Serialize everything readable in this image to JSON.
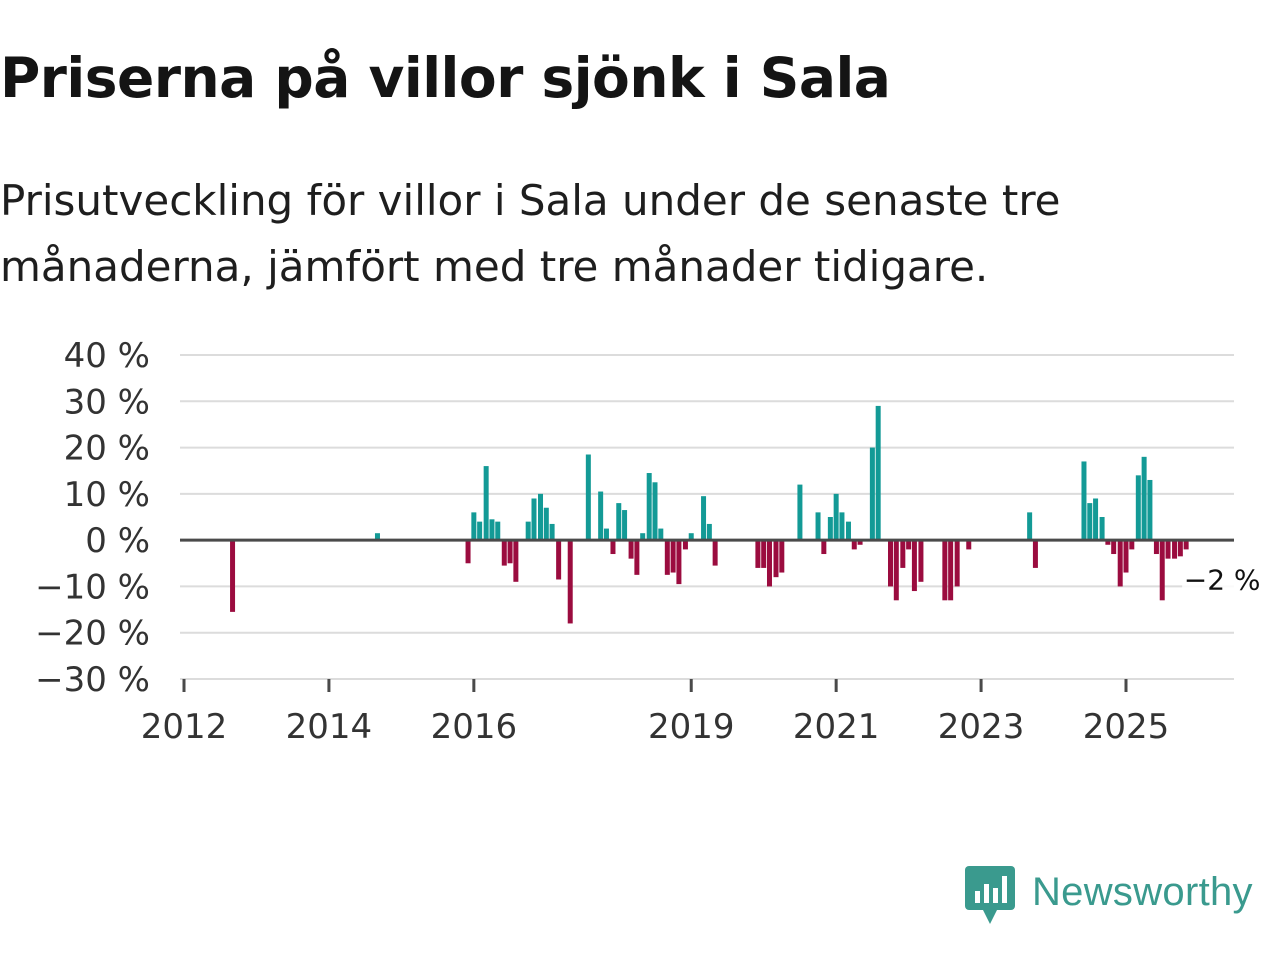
{
  "title": "Priserna på villor sjönk i Sala",
  "subtitle": "Prisutveckling för villor i Sala under de senaste tre månaderna, jämfört med tre månader tidigare.",
  "brand": {
    "name": "Newsworthy",
    "icon": "newsworthy-logo-icon",
    "color": "#3a9a8e"
  },
  "colors": {
    "positive": "#139a96",
    "negative": "#9b0c3f",
    "grid": "#dcdcdc",
    "axis": "#4a4a4a"
  },
  "chart_data": {
    "type": "bar",
    "title": "Priserna på villor sjönk i Sala",
    "subtitle": "Prisutveckling för villor i Sala under de senaste tre månaderna, jämfört med tre månader tidigare.",
    "xlabel": "",
    "ylabel": "",
    "unit": "%",
    "ylim": [
      -30,
      40
    ],
    "xlim": [
      2012,
      2026.5
    ],
    "grid": true,
    "y_ticks": [
      {
        "value": 40,
        "label": "40 %"
      },
      {
        "value": 30,
        "label": "30 %"
      },
      {
        "value": 20,
        "label": "20 %"
      },
      {
        "value": 10,
        "label": "10 %"
      },
      {
        "value": 0,
        "label": "0 %"
      },
      {
        "value": -10,
        "label": "−10 %"
      },
      {
        "value": -20,
        "label": "−20 %"
      },
      {
        "value": -30,
        "label": "−30 %"
      }
    ],
    "x_ticks": [
      {
        "value": 2012,
        "label": "2012"
      },
      {
        "value": 2014,
        "label": "2014"
      },
      {
        "value": 2016,
        "label": "2016"
      },
      {
        "value": 2019,
        "label": "2019"
      },
      {
        "value": 2021,
        "label": "2021"
      },
      {
        "value": 2023,
        "label": "2023"
      },
      {
        "value": 2025,
        "label": "2025"
      }
    ],
    "last_value_label": "−2 %",
    "series": [
      {
        "name": "Prisutveckling",
        "points": [
          {
            "x": 2012.67,
            "y": -15.5
          },
          {
            "x": 2014.67,
            "y": 1.5
          },
          {
            "x": 2015.92,
            "y": -5
          },
          {
            "x": 2016.0,
            "y": 6
          },
          {
            "x": 2016.08,
            "y": 4
          },
          {
            "x": 2016.17,
            "y": 16
          },
          {
            "x": 2016.25,
            "y": 4.5
          },
          {
            "x": 2016.33,
            "y": 4
          },
          {
            "x": 2016.42,
            "y": -5.5
          },
          {
            "x": 2016.5,
            "y": -5
          },
          {
            "x": 2016.58,
            "y": -9
          },
          {
            "x": 2016.75,
            "y": 4
          },
          {
            "x": 2016.83,
            "y": 9
          },
          {
            "x": 2016.92,
            "y": 10
          },
          {
            "x": 2017.0,
            "y": 7
          },
          {
            "x": 2017.08,
            "y": 3.5
          },
          {
            "x": 2017.17,
            "y": -8.5
          },
          {
            "x": 2017.33,
            "y": -18
          },
          {
            "x": 2017.58,
            "y": 18.5
          },
          {
            "x": 2017.75,
            "y": 10.5
          },
          {
            "x": 2017.83,
            "y": 2.5
          },
          {
            "x": 2017.92,
            "y": -3
          },
          {
            "x": 2018.0,
            "y": 8
          },
          {
            "x": 2018.08,
            "y": 6.5
          },
          {
            "x": 2018.17,
            "y": -4
          },
          {
            "x": 2018.25,
            "y": -7.5
          },
          {
            "x": 2018.33,
            "y": 1.5
          },
          {
            "x": 2018.42,
            "y": 14.5
          },
          {
            "x": 2018.5,
            "y": 12.5
          },
          {
            "x": 2018.58,
            "y": 2.5
          },
          {
            "x": 2018.67,
            "y": -7.5
          },
          {
            "x": 2018.75,
            "y": -7
          },
          {
            "x": 2018.83,
            "y": -9.5
          },
          {
            "x": 2018.92,
            "y": -2
          },
          {
            "x": 2019.0,
            "y": 1.5
          },
          {
            "x": 2019.17,
            "y": 9.5
          },
          {
            "x": 2019.25,
            "y": 3.5
          },
          {
            "x": 2019.33,
            "y": -5.5
          },
          {
            "x": 2019.92,
            "y": -6
          },
          {
            "x": 2020.0,
            "y": -6
          },
          {
            "x": 2020.08,
            "y": -10
          },
          {
            "x": 2020.17,
            "y": -8
          },
          {
            "x": 2020.25,
            "y": -7
          },
          {
            "x": 2020.5,
            "y": 12
          },
          {
            "x": 2020.75,
            "y": 6
          },
          {
            "x": 2020.83,
            "y": -3
          },
          {
            "x": 2020.92,
            "y": 5
          },
          {
            "x": 2021.0,
            "y": 10
          },
          {
            "x": 2021.08,
            "y": 6
          },
          {
            "x": 2021.17,
            "y": 4
          },
          {
            "x": 2021.25,
            "y": -2
          },
          {
            "x": 2021.33,
            "y": -1
          },
          {
            "x": 2021.5,
            "y": 20
          },
          {
            "x": 2021.58,
            "y": 29
          },
          {
            "x": 2021.75,
            "y": -10
          },
          {
            "x": 2021.83,
            "y": -13
          },
          {
            "x": 2021.92,
            "y": -6
          },
          {
            "x": 2022.0,
            "y": -2
          },
          {
            "x": 2022.08,
            "y": -11
          },
          {
            "x": 2022.17,
            "y": -9
          },
          {
            "x": 2022.5,
            "y": -13
          },
          {
            "x": 2022.58,
            "y": -13
          },
          {
            "x": 2022.67,
            "y": -10
          },
          {
            "x": 2022.83,
            "y": -2
          },
          {
            "x": 2023.67,
            "y": 6
          },
          {
            "x": 2023.75,
            "y": -6
          },
          {
            "x": 2024.42,
            "y": 17
          },
          {
            "x": 2024.5,
            "y": 8
          },
          {
            "x": 2024.58,
            "y": 9
          },
          {
            "x": 2024.67,
            "y": 5
          },
          {
            "x": 2024.75,
            "y": -1
          },
          {
            "x": 2024.83,
            "y": -3
          },
          {
            "x": 2024.92,
            "y": -10
          },
          {
            "x": 2025.0,
            "y": -7
          },
          {
            "x": 2025.08,
            "y": -2
          },
          {
            "x": 2025.17,
            "y": 14
          },
          {
            "x": 2025.25,
            "y": 18
          },
          {
            "x": 2025.33,
            "y": 13
          },
          {
            "x": 2025.42,
            "y": -3
          },
          {
            "x": 2025.5,
            "y": -13
          },
          {
            "x": 2025.58,
            "y": -4
          },
          {
            "x": 2025.67,
            "y": -4
          },
          {
            "x": 2025.75,
            "y": -3.5
          },
          {
            "x": 2025.83,
            "y": -2
          }
        ]
      }
    ]
  }
}
